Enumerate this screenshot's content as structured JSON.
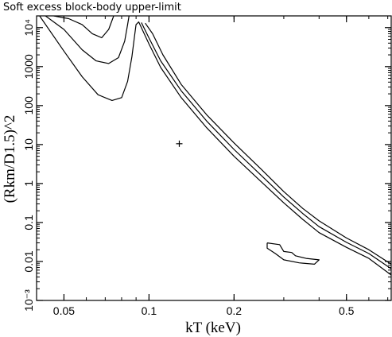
{
  "chart_data": {
    "type": "line",
    "title": "Soft excess block-body upper-limit",
    "xlabel": "kT (keV)",
    "ylabel": "(Rkm/D1.5)^2",
    "x_scale": "log",
    "y_scale": "log",
    "xlim": [
      0.04,
      0.72
    ],
    "ylim": [
      0.001,
      20000
    ],
    "x_ticks": [
      {
        "value": 0.05,
        "label": "0.05"
      },
      {
        "value": 0.1,
        "label": "0.1"
      },
      {
        "value": 0.2,
        "label": "0.2"
      },
      {
        "value": 0.5,
        "label": "0.5"
      }
    ],
    "y_ticks": [
      {
        "value": 0.001,
        "label": "10⁻³"
      },
      {
        "value": 0.01,
        "label": "0.01"
      },
      {
        "value": 0.1,
        "label": "0.1"
      },
      {
        "value": 1,
        "label": "1"
      },
      {
        "value": 10,
        "label": "10"
      },
      {
        "value": 100,
        "label": "100"
      },
      {
        "value": 1000,
        "label": "1000"
      },
      {
        "value": 10000,
        "label": "10⁴"
      }
    ],
    "series": [
      {
        "kind": "contour-inner",
        "points": [
          [
            0.046,
            20000
          ],
          [
            0.052,
            17000
          ],
          [
            0.058,
            12000
          ],
          [
            0.063,
            7000
          ],
          [
            0.068,
            5500
          ],
          [
            0.072,
            9000
          ],
          [
            0.075,
            20000
          ]
        ]
      },
      {
        "kind": "contour-middle",
        "points": [
          [
            0.043,
            20000
          ],
          [
            0.05,
            9000
          ],
          [
            0.058,
            2700
          ],
          [
            0.065,
            1400
          ],
          [
            0.072,
            1200
          ],
          [
            0.078,
            1700
          ],
          [
            0.082,
            4500
          ],
          [
            0.084,
            12000
          ],
          [
            0.085,
            20000
          ]
        ]
      },
      {
        "kind": "contour-outer",
        "points": [
          [
            0.041,
            20000
          ],
          [
            0.05,
            2500
          ],
          [
            0.058,
            550
          ],
          [
            0.066,
            190
          ],
          [
            0.074,
            135
          ],
          [
            0.08,
            160
          ],
          [
            0.084,
            420
          ],
          [
            0.087,
            1800
          ],
          [
            0.089,
            6500
          ],
          [
            0.09,
            12000
          ],
          [
            0.092,
            14000
          ],
          [
            0.094,
            10000
          ],
          [
            0.1,
            3800
          ],
          [
            0.11,
            950
          ],
          [
            0.13,
            160
          ],
          [
            0.16,
            27
          ],
          [
            0.2,
            5
          ],
          [
            0.25,
            1.1
          ],
          [
            0.3,
            0.32
          ],
          [
            0.35,
            0.12
          ],
          [
            0.4,
            0.055
          ],
          [
            0.5,
            0.023
          ],
          [
            0.6,
            0.012
          ],
          [
            0.72,
            0.0045
          ]
        ]
      },
      {
        "kind": "contour-middle-tail",
        "points": [
          [
            0.094,
            13500
          ],
          [
            0.1,
            5400
          ],
          [
            0.11,
            1400
          ],
          [
            0.13,
            240
          ],
          [
            0.16,
            40
          ],
          [
            0.2,
            7.5
          ],
          [
            0.25,
            1.6
          ],
          [
            0.3,
            0.45
          ],
          [
            0.35,
            0.17
          ],
          [
            0.4,
            0.078
          ],
          [
            0.5,
            0.031
          ],
          [
            0.6,
            0.016
          ],
          [
            0.72,
            0.0065
          ]
        ]
      },
      {
        "kind": "contour-inner-tail",
        "points": [
          [
            0.097,
            13000
          ],
          [
            0.103,
            7000
          ],
          [
            0.112,
            2000
          ],
          [
            0.13,
            350
          ],
          [
            0.16,
            58
          ],
          [
            0.2,
            11
          ],
          [
            0.25,
            2.3
          ],
          [
            0.3,
            0.62
          ],
          [
            0.35,
            0.23
          ],
          [
            0.4,
            0.11
          ],
          [
            0.5,
            0.04
          ],
          [
            0.6,
            0.02
          ],
          [
            0.72,
            0.0085
          ]
        ]
      },
      {
        "kind": "contour-island",
        "points": [
          [
            0.262,
            0.03
          ],
          [
            0.29,
            0.027
          ],
          [
            0.3,
            0.018
          ],
          [
            0.32,
            0.017
          ],
          [
            0.33,
            0.014
          ],
          [
            0.36,
            0.012
          ],
          [
            0.4,
            0.011
          ],
          [
            0.385,
            0.0085
          ],
          [
            0.34,
            0.0092
          ],
          [
            0.3,
            0.011
          ],
          [
            0.28,
            0.016
          ],
          [
            0.262,
            0.022
          ],
          [
            0.262,
            0.03
          ]
        ]
      }
    ],
    "best_fit": {
      "x": 0.128,
      "y": 10.5,
      "marker": "+"
    },
    "grid": false,
    "legend": "none"
  }
}
